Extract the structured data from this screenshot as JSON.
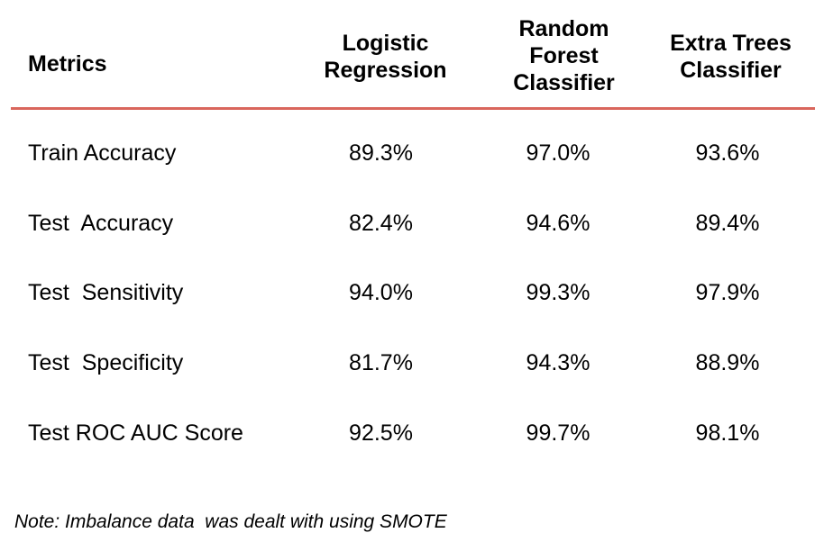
{
  "table": {
    "headers": {
      "metrics": "Metrics",
      "col1": [
        "Logistic",
        "Regression"
      ],
      "col2": [
        "Random",
        "Forest",
        "Classifier"
      ],
      "col3": [
        "Extra Trees",
        "Classifier"
      ]
    },
    "rows": [
      {
        "label": "Train Accuracy",
        "values": [
          "89.3%",
          "97.0%",
          "93.6%"
        ]
      },
      {
        "label": "Test  Accuracy",
        "values": [
          "82.4%",
          "94.6%",
          "89.4%"
        ]
      },
      {
        "label": "Test  Sensitivity",
        "values": [
          "94.0%",
          "99.3%",
          "97.9%"
        ]
      },
      {
        "label": "Test  Specificity",
        "values": [
          "81.7%",
          "94.3%",
          "88.9%"
        ]
      },
      {
        "label": "Test ROC AUC Score",
        "values": [
          "92.5%",
          "99.7%",
          "98.1%"
        ]
      }
    ]
  },
  "note": "Note: Imbalance data  was dealt with using SMOTE",
  "colors": {
    "divider": "#d9665c",
    "text": "#000000",
    "background": "#ffffff"
  }
}
